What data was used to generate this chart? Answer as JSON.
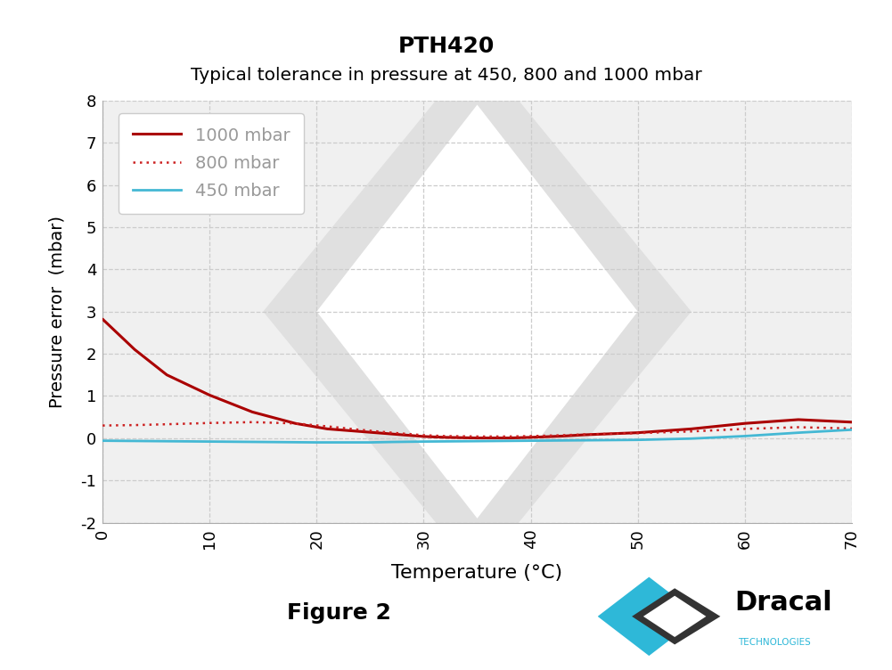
{
  "title": "PTH420",
  "subtitle": "Typical tolerance in pressure at 450, 800 and 1000 mbar",
  "xlabel": "Temperature (°C)",
  "ylabel": "Pressure error  (mbar)",
  "xlim": [
    0,
    70
  ],
  "ylim": [
    -2,
    8
  ],
  "yticks": [
    -2,
    -1,
    0,
    1,
    2,
    3,
    4,
    5,
    6,
    7,
    8
  ],
  "xticks": [
    0,
    10,
    20,
    30,
    40,
    50,
    60,
    70
  ],
  "figure_caption": "Figure 2",
  "bg_color": "#ffffff",
  "plot_bg_color": "#f0f0f0",
  "grid_color": "#cccccc",
  "line_1000_color": "#aa0000",
  "line_800_color": "#cc2222",
  "line_450_color": "#44b8d4",
  "legend_label_color": "#999999",
  "legend_label_1000": "1000 mbar",
  "legend_label_800": "800 mbar",
  "legend_label_450": "450 mbar",
  "x_1000": [
    0,
    3,
    6,
    10,
    14,
    18,
    21,
    24,
    27,
    29,
    30,
    32,
    35,
    38,
    40,
    43,
    45,
    50,
    55,
    60,
    65,
    70
  ],
  "y_1000": [
    2.82,
    2.1,
    1.5,
    1.02,
    0.62,
    0.35,
    0.22,
    0.16,
    0.1,
    0.06,
    0.04,
    0.02,
    0.005,
    0.005,
    0.02,
    0.05,
    0.08,
    0.13,
    0.22,
    0.35,
    0.44,
    0.38
  ],
  "x_800": [
    0,
    3,
    6,
    10,
    14,
    18,
    21,
    24,
    27,
    29,
    30,
    32,
    35,
    38,
    40,
    43,
    45,
    50,
    55,
    60,
    65,
    70
  ],
  "y_800": [
    0.3,
    0.31,
    0.33,
    0.36,
    0.38,
    0.35,
    0.28,
    0.2,
    0.13,
    0.09,
    0.07,
    0.05,
    0.04,
    0.04,
    0.05,
    0.07,
    0.09,
    0.12,
    0.16,
    0.22,
    0.26,
    0.23
  ],
  "x_450": [
    0,
    5,
    10,
    15,
    20,
    25,
    27,
    30,
    35,
    40,
    45,
    50,
    55,
    60,
    65,
    70
  ],
  "y_450": [
    -0.06,
    -0.07,
    -0.08,
    -0.09,
    -0.1,
    -0.1,
    -0.09,
    -0.08,
    -0.07,
    -0.06,
    -0.05,
    -0.04,
    -0.01,
    0.05,
    0.13,
    0.2
  ],
  "watermark_color": "#e0e0e0",
  "dracal_blue": "#2eb8d8",
  "dracal_dark": "#333333"
}
